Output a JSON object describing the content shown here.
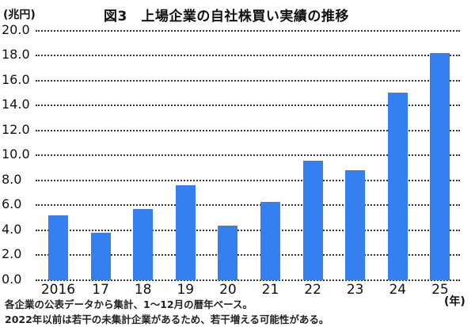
{
  "header": {
    "title": "図3　上場企業の自社株買い実績の推移",
    "y_unit": "(兆円)",
    "x_unit": "(年)"
  },
  "notes": [
    "各企業の公表データから集計、1〜12月の暦年ベース。",
    "2022年以前は若干の未集計企業があるため、若干増える可能性がある。"
  ],
  "colors": {
    "bar": "#3580f0",
    "grid": "#333333"
  },
  "chart_data": {
    "type": "bar",
    "title": "図3　上場企業の自社株買い実績の推移",
    "xlabel": "(年)",
    "ylabel": "(兆円)",
    "categories": [
      "2016",
      "17",
      "18",
      "19",
      "20",
      "21",
      "22",
      "23",
      "24",
      "25"
    ],
    "values": [
      5.2,
      3.8,
      5.7,
      7.6,
      4.4,
      6.3,
      9.6,
      8.8,
      15.0,
      18.2
    ],
    "ylim": [
      0,
      20
    ],
    "yticks": [
      "0.0",
      "2.0",
      "4.0",
      "6.0",
      "8.0",
      "10.0",
      "12.0",
      "14.0",
      "16.0",
      "18.0",
      "20.0"
    ],
    "grid": true,
    "legend": null
  }
}
